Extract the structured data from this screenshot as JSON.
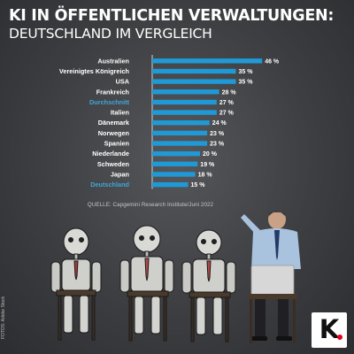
{
  "title": "KI IN ÖFFENTLICHEN VERWALTUNGEN:",
  "subtitle": "DEUTSCHLAND IM VERGLEICH",
  "source": "QUELLE: Capgemini Research Institute/Juni 2022",
  "photo_credit": "FOTOS: Adobe Stock",
  "logo_letter": "K",
  "colors": {
    "bar": "#1f9ad6",
    "highlight_label": "#3fa7d9",
    "axis": "#cfd3d6",
    "logo_dot": "#e3001b"
  },
  "chart_data": {
    "type": "bar",
    "orientation": "horizontal",
    "categories": [
      "Australien",
      "Vereinigtes Königreich",
      "USA",
      "Frankreich",
      "Durchschnitt",
      "Italien",
      "Dänemark",
      "Norwegen",
      "Spanien",
      "Niederlande",
      "Schweden",
      "Japan",
      "Deutschland"
    ],
    "values": [
      46,
      35,
      35,
      28,
      27,
      27,
      24,
      23,
      23,
      20,
      19,
      18,
      15
    ],
    "value_suffix": "%",
    "highlighted": [
      "Durchschnitt",
      "Deutschland"
    ],
    "xlim": [
      0,
      50
    ]
  }
}
